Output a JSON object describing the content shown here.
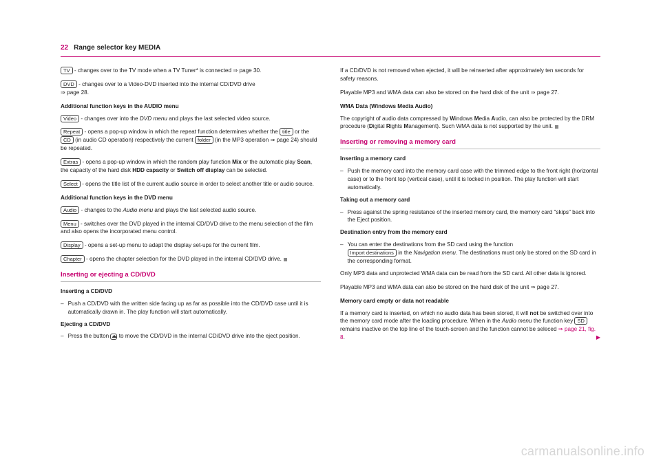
{
  "header": {
    "page_num": "22",
    "title": "Range selector key MEDIA"
  },
  "keys": {
    "tv": "TV",
    "dvd": "DVD",
    "video": "Video",
    "repeat": "Repeat",
    "title": "title",
    "cd": "CD",
    "folder": "folder",
    "extras": "Extras",
    "select": "Select",
    "audio": "Audio",
    "menu": "Menu",
    "display": "Display",
    "chapter": "Chapter",
    "sd": "SD",
    "importdest": "Import destinations"
  },
  "left": {
    "tv_line_a": " - changes over to the TV mode when a TV Tuner* is connected ",
    "tv_line_b": "⇒ page 30.",
    "dvd_line_a": " - changes over to a Video-DVD inserted into the internal CD/DVD drive ",
    "dvd_line_b": "⇒ page 28.",
    "h_audio": "Additional function keys in the AUDIO menu",
    "video_line": " - changes over into the DVD menu and plays the last selected video source.",
    "repeat_a": " - opens a pop-up window in which the repeat function determines whether the ",
    "repeat_b": " or the ",
    "repeat_c": " (in audio CD operation) respectively the current ",
    "repeat_d": " (in the MP3 operation ⇒ page 24) should be repeated.",
    "extras_a": " - opens a pop-up window in which the random play function ",
    "extras_mix": "Mix",
    "extras_b": " or the automatic play ",
    "extras_scan": "Scan",
    "extras_c": ", the capacity of the hard disk ",
    "extras_hdd": "HDD capacity",
    "extras_d": " or ",
    "extras_off": "Switch off display",
    "extras_e": " can be selected.",
    "select_line": " - opens the title list of the current audio source in order to select another title or audio source.",
    "h_dvd": "Additional function keys in the DVD menu",
    "audio_line": " - changes to the Audio menu and plays the last selected audio source.",
    "menu_line": " - switches over the DVD played in the internal CD/DVD drive to the menu selection of the film and also opens the incorporated menu control.",
    "display_line": " - opens a set-up menu to adapt the display set-ups for the current film.",
    "chapter_line": " - opens the chapter selection for the DVD played in the internal CD/DVD drive.",
    "h2_insert": "Inserting or ejecting a CD/DVD",
    "h_inscd": "Inserting a CD/DVD",
    "inscd_bullet": "Push a CD/DVD with the written side facing up as far as possible into the CD/DVD case until it is automatically drawn in. The play function will start automatically.",
    "h_ejcd": "Ejecting a CD/DVD",
    "ejcd_a": "Press the button ",
    "ejcd_b": " to move the CD/DVD in the internal CD/DVD drive into the eject position."
  },
  "right": {
    "p1": "If a CD/DVD is not removed when ejected, it will be reinserted after approximately ten seconds for safety reasons.",
    "p2": "Playable MP3 and WMA data can also be stored on the hard disk of the unit ⇒ page 27.",
    "h_wma": "WMA Data (Windows Media Audio)",
    "wma_a": "The copyright of audio data compressed by ",
    "wma_b": "indows ",
    "wma_c": "edia ",
    "wma_d": "udio, can also be protected by the DRM procedure (",
    "wma_e": "igital ",
    "wma_f": "ights ",
    "wma_g": "anagement). Such WMA data is not supported by the unit.",
    "h2_mem": "Inserting or removing a memory card",
    "h_insmem": "Inserting a memory card",
    "insmem_bullet": "Push the memory card into the memory card case with the trimmed edge to the front right (horizontal case) or to the front top (vertical case), until it is locked in position. The play function will start automatically.",
    "h_takemem": "Taking out a memory card",
    "takemem_bullet": "Press against the spring resistance of the inserted memory card, the memory card \"skips\" back into the Eject position.",
    "h_dest": "Destination entry from the memory card",
    "dest_a": "You can enter the destinations from the SD card using the function ",
    "dest_b": " in the Navigation menu. The destinations must only be stored on the SD card in the corresponding format.",
    "p3": "Only MP3 data and unprotected WMA data can be read from the SD card. All other data is ignored.",
    "p4": "Playable MP3 and WMA data can also be stored on the hard disk of the unit ⇒ page 27.",
    "h_empty": "Memory card empty or data not readable",
    "empty_a": "If a memory card is inserted, on which no audio data has been stored, it will ",
    "empty_not": "not",
    "empty_b": " be switched over into the memory card mode after the loading procedure. When in the Audio menu the function key ",
    "empty_c": " remains inactive on the top line of the touch-screen and the function cannot be seleced ",
    "empty_link": "⇒ page 21, fig. 8"
  },
  "watermark": "carmanualsonline.info"
}
